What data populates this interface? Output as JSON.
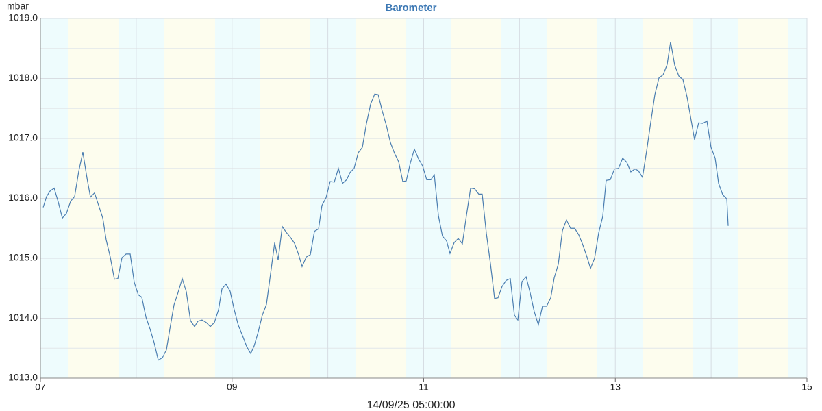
{
  "chart_data": {
    "type": "line",
    "title": "Barometer",
    "y_label": "mbar",
    "x_label": "14/09/25 05:00:00",
    "color": "#4a7db0",
    "day_color": "#fdfdee",
    "night_color": "#eefcfd",
    "grid": true,
    "xlim": [
      7,
      15
    ],
    "xticks": [
      {
        "value": 7,
        "label": "07"
      },
      {
        "value": 9,
        "label": "09"
      },
      {
        "value": 11,
        "label": "11"
      },
      {
        "value": 13,
        "label": "13"
      },
      {
        "value": 15,
        "label": "15"
      }
    ],
    "x_minor_gridlines": [
      8,
      10,
      12,
      14
    ],
    "ylim": [
      1013,
      1019
    ],
    "yticks": [
      {
        "value": 1013,
        "label": "1013.0"
      },
      {
        "value": 1014,
        "label": "1014.0"
      },
      {
        "value": 1015,
        "label": "1015.0"
      },
      {
        "value": 1016,
        "label": "1016.0"
      },
      {
        "value": 1017,
        "label": "1017.0"
      },
      {
        "value": 1018,
        "label": "1018.0"
      },
      {
        "value": 1019,
        "label": "1019.0"
      }
    ],
    "y_minor_gridlines": [
      1013.5,
      1014.5,
      1015.5,
      1016.5,
      1017.5,
      1018.5
    ],
    "daylight_bands": [
      [
        7.293,
        7.822
      ],
      [
        8.294,
        8.823
      ],
      [
        9.288,
        9.817
      ],
      [
        10.289,
        10.818
      ],
      [
        11.282,
        11.811
      ],
      [
        12.283,
        12.812
      ],
      [
        13.284,
        13.806
      ],
      [
        14.285,
        14.807
      ]
    ],
    "x": [
      7.029,
      7.064,
      7.1,
      7.143,
      7.186,
      7.229,
      7.272,
      7.315,
      7.357,
      7.4,
      7.443,
      7.486,
      7.522,
      7.565,
      7.608,
      7.651,
      7.686,
      7.729,
      7.772,
      7.808,
      7.851,
      7.894,
      7.937,
      7.979,
      8.022,
      8.058,
      8.101,
      8.144,
      8.187,
      8.23,
      8.273,
      8.315,
      8.351,
      8.394,
      8.437,
      8.48,
      8.523,
      8.566,
      8.609,
      8.644,
      8.687,
      8.73,
      8.773,
      8.816,
      8.859,
      8.895,
      8.937,
      8.98,
      9.023,
      9.066,
      9.109,
      9.152,
      9.195,
      9.231,
      9.273,
      9.316,
      9.359,
      9.402,
      9.445,
      9.481,
      9.524,
      9.567,
      9.609,
      9.652,
      9.695,
      9.731,
      9.774,
      9.817,
      9.86,
      9.903,
      9.938,
      9.981,
      10.024,
      10.067,
      10.11,
      10.153,
      10.196,
      10.231,
      10.274,
      10.317,
      10.36,
      10.403,
      10.446,
      10.489,
      10.525,
      10.567,
      10.61,
      10.653,
      10.696,
      10.739,
      10.782,
      10.818,
      10.861,
      10.903,
      10.946,
      10.989,
      11.032,
      11.075,
      11.111,
      11.154,
      11.196,
      11.239,
      11.275,
      11.318,
      11.361,
      11.404,
      11.447,
      11.49,
      11.532,
      11.575,
      11.611,
      11.654,
      11.697,
      11.74,
      11.776,
      11.818,
      11.861,
      11.904,
      11.947,
      11.983,
      12.026,
      12.069,
      12.112,
      12.154,
      12.197,
      12.24,
      12.283,
      12.326,
      12.362,
      12.405,
      12.448,
      12.49,
      12.533,
      12.576,
      12.619,
      12.662,
      12.705,
      12.741,
      12.784,
      12.826,
      12.869,
      12.905,
      12.948,
      12.991,
      13.034,
      13.077,
      13.12,
      13.162,
      13.205,
      13.241,
      13.284,
      13.327,
      13.37,
      13.413,
      13.456,
      13.499,
      13.541,
      13.577,
      13.62,
      13.663,
      13.706,
      13.749,
      13.792,
      13.827,
      13.87,
      13.913,
      13.956,
      13.999,
      14.042,
      14.078,
      14.121,
      14.164,
      14.178
    ],
    "values": [
      1015.85,
      1016.03,
      1016.12,
      1016.17,
      1015.94,
      1015.67,
      1015.75,
      1015.95,
      1016.03,
      1016.45,
      1016.77,
      1016.34,
      1016.02,
      1016.09,
      1015.88,
      1015.67,
      1015.31,
      1015.02,
      1014.65,
      1014.66,
      1015.01,
      1015.07,
      1015.07,
      1014.6,
      1014.39,
      1014.35,
      1014.02,
      1013.82,
      1013.59,
      1013.3,
      1013.34,
      1013.47,
      1013.82,
      1014.22,
      1014.43,
      1014.66,
      1014.44,
      1013.96,
      1013.86,
      1013.95,
      1013.97,
      1013.93,
      1013.86,
      1013.93,
      1014.14,
      1014.49,
      1014.57,
      1014.45,
      1014.14,
      1013.88,
      1013.71,
      1013.53,
      1013.41,
      1013.54,
      1013.77,
      1014.05,
      1014.23,
      1014.74,
      1015.26,
      1014.97,
      1015.53,
      1015.43,
      1015.35,
      1015.25,
      1015.06,
      1014.86,
      1015.02,
      1015.06,
      1015.45,
      1015.49,
      1015.88,
      1016.01,
      1016.28,
      1016.27,
      1016.5,
      1016.25,
      1016.31,
      1016.43,
      1016.5,
      1016.76,
      1016.85,
      1017.25,
      1017.57,
      1017.74,
      1017.73,
      1017.46,
      1017.22,
      1016.93,
      1016.75,
      1016.61,
      1016.28,
      1016.29,
      1016.59,
      1016.82,
      1016.66,
      1016.54,
      1016.31,
      1016.31,
      1016.39,
      1015.71,
      1015.37,
      1015.29,
      1015.08,
      1015.26,
      1015.33,
      1015.24,
      1015.72,
      1016.17,
      1016.16,
      1016.07,
      1016.07,
      1015.42,
      1014.91,
      1014.33,
      1014.34,
      1014.53,
      1014.63,
      1014.66,
      1014.05,
      1013.97,
      1014.61,
      1014.69,
      1014.42,
      1014.11,
      1013.89,
      1014.2,
      1014.2,
      1014.34,
      1014.67,
      1014.9,
      1015.46,
      1015.64,
      1015.5,
      1015.5,
      1015.39,
      1015.22,
      1015.02,
      1014.83,
      1015.0,
      1015.42,
      1015.7,
      1016.3,
      1016.31,
      1016.49,
      1016.5,
      1016.67,
      1016.6,
      1016.44,
      1016.49,
      1016.46,
      1016.35,
      1016.79,
      1017.27,
      1017.73,
      1018.01,
      1018.06,
      1018.23,
      1018.61,
      1018.22,
      1018.04,
      1017.98,
      1017.69,
      1017.3,
      1016.98,
      1017.26,
      1017.25,
      1017.29,
      1016.85,
      1016.67,
      1016.25,
      1016.06,
      1015.99,
      1015.54
    ]
  }
}
